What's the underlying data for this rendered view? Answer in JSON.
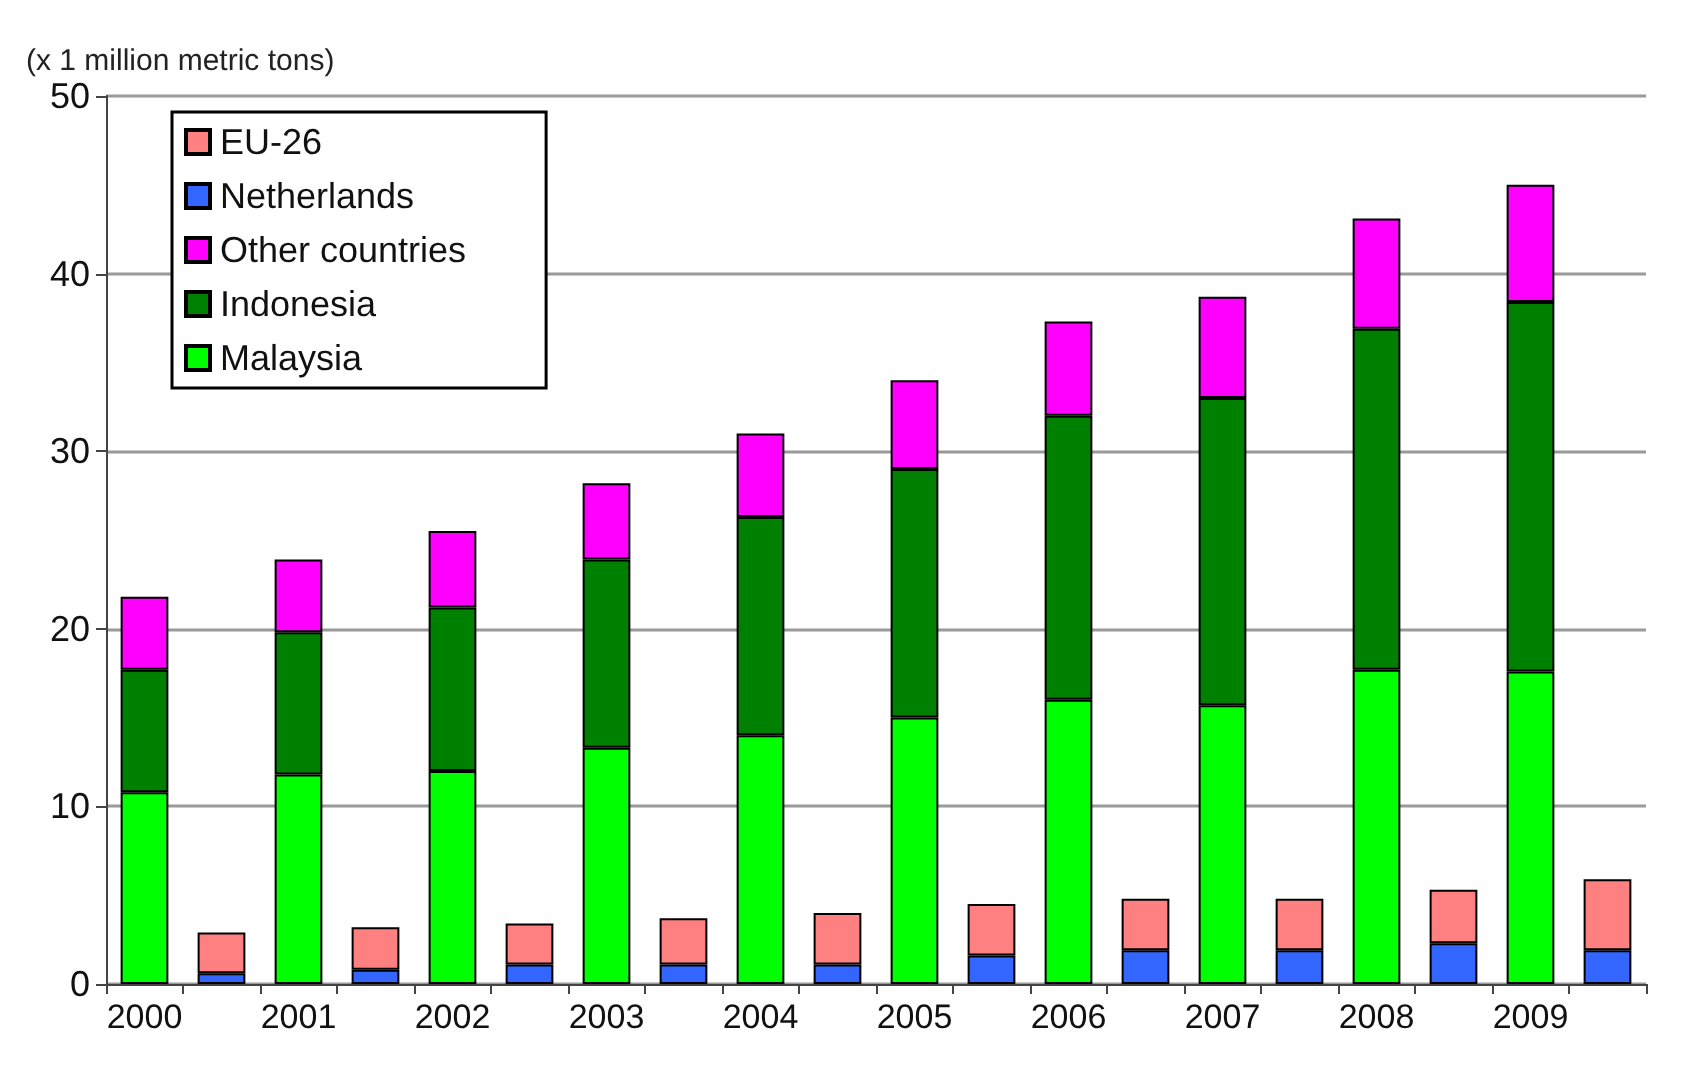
{
  "chart_data": {
    "type": "bar",
    "ylabel": "(x 1 million metric tons)",
    "categories": [
      "2000",
      null,
      "2001",
      null,
      "2002",
      null,
      "2003",
      null,
      "2004",
      null,
      "2005",
      null,
      "2006",
      null,
      "2007",
      null,
      "2008",
      null,
      "2009",
      null
    ],
    "series": [
      {
        "name": "Malaysia",
        "color": "#00ff00",
        "values": [
          10.8,
          null,
          11.8,
          null,
          12.0,
          null,
          13.3,
          null,
          14.0,
          null,
          15.0,
          null,
          16.0,
          null,
          15.7,
          null,
          17.7,
          null,
          17.6,
          null
        ]
      },
      {
        "name": "Indonesia",
        "color": "#008000",
        "values": [
          6.9,
          null,
          8.0,
          null,
          9.2,
          null,
          10.6,
          null,
          12.3,
          null,
          14.0,
          null,
          16.0,
          null,
          17.3,
          null,
          19.2,
          null,
          20.8,
          null
        ]
      },
      {
        "name": "Other countries",
        "color": "#ff00ff",
        "values": [
          4.1,
          null,
          4.1,
          null,
          4.3,
          null,
          4.3,
          null,
          4.7,
          null,
          5.0,
          null,
          5.3,
          null,
          5.7,
          null,
          6.2,
          null,
          6.6,
          null
        ]
      },
      {
        "name": "Netherlands",
        "color": "#3366ff",
        "values": [
          null,
          0.6,
          null,
          0.8,
          null,
          1.1,
          null,
          1.1,
          null,
          1.1,
          null,
          1.6,
          null,
          1.9,
          null,
          1.9,
          null,
          2.3,
          null,
          1.9
        ]
      },
      {
        "name": "EU-26",
        "color": "#ff8080",
        "values": [
          null,
          2.3,
          null,
          2.4,
          null,
          2.3,
          null,
          2.6,
          null,
          2.9,
          null,
          2.9,
          null,
          2.9,
          null,
          2.9,
          null,
          3.0,
          null,
          4.0
        ]
      }
    ],
    "stacked": true,
    "ylim": [
      0,
      50
    ],
    "yticks": [
      0,
      10,
      20,
      30,
      40,
      50
    ],
    "grid": "y",
    "legend": "top left"
  }
}
